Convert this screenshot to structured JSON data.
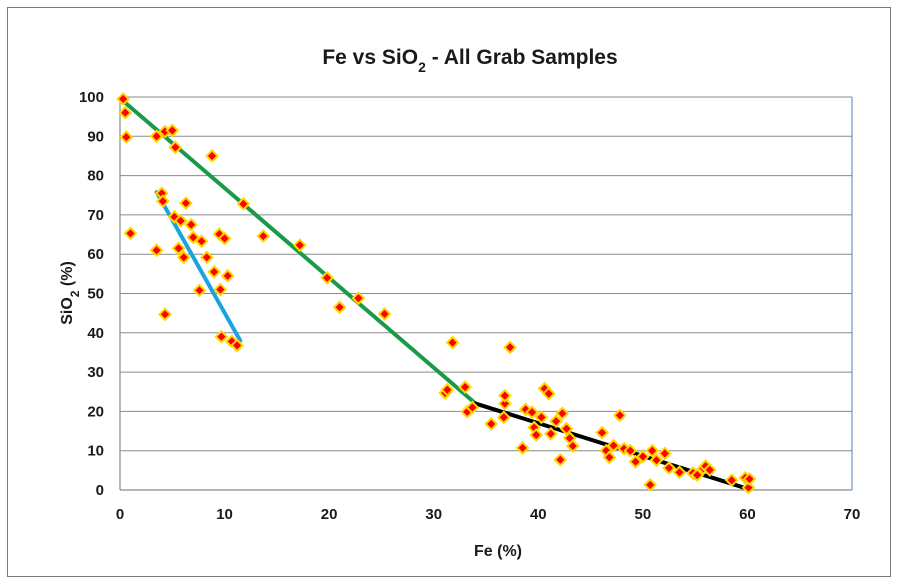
{
  "chart_data": {
    "type": "scatter",
    "title": "Fe vs SiO",
    "title_subscript": "2",
    "title_suffix": " - All Grab Samples",
    "xlabel": "Fe  (%)",
    "ylabel": "SiO",
    "ylabel_subscript": "2",
    "ylabel_suffix": "  (%)",
    "xlim": [
      0,
      70
    ],
    "ylim": [
      0,
      100
    ],
    "x_ticks": [
      "0",
      "10",
      "20",
      "30",
      "40",
      "50",
      "60",
      "70"
    ],
    "y_ticks": [
      "0",
      "10",
      "20",
      "30",
      "40",
      "50",
      "60",
      "70",
      "80",
      "90",
      "100"
    ],
    "grid": "horizontal",
    "legend": "none",
    "plot_background": "#ffffff",
    "grid_color": "#8a8a8a",
    "series": [
      {
        "marker": "diamond",
        "marker_fill": "#ff0000",
        "marker_edge": "#ffd700",
        "points": [
          [
            0.3,
            99.5
          ],
          [
            0.5,
            96
          ],
          [
            0.6,
            89.8
          ],
          [
            1.0,
            65.3
          ],
          [
            3.5,
            90
          ],
          [
            4.3,
            91.2
          ],
          [
            5.0,
            91.5
          ],
          [
            5.3,
            87.2
          ],
          [
            3.5,
            61
          ],
          [
            4.0,
            75.5
          ],
          [
            4.1,
            73.5
          ],
          [
            4.3,
            44.7
          ],
          [
            5.2,
            69.5
          ],
          [
            5.6,
            61.5
          ],
          [
            5.8,
            68.5
          ],
          [
            6.1,
            59.2
          ],
          [
            6.3,
            73
          ],
          [
            6.8,
            67.5
          ],
          [
            7.0,
            64.3
          ],
          [
            7.6,
            50.8
          ],
          [
            7.8,
            63.3
          ],
          [
            8.3,
            59.2
          ],
          [
            8.8,
            85
          ],
          [
            9.0,
            55.5
          ],
          [
            9.5,
            65.1
          ],
          [
            9.6,
            51
          ],
          [
            9.7,
            39
          ],
          [
            10.0,
            64
          ],
          [
            10.3,
            54.5
          ],
          [
            10.7,
            37.8
          ],
          [
            11.2,
            36.8
          ],
          [
            11.8,
            72.8
          ],
          [
            13.7,
            64.6
          ],
          [
            17.2,
            62.3
          ],
          [
            19.8,
            54
          ],
          [
            21.0,
            46.5
          ],
          [
            22.8,
            48.8
          ],
          [
            25.3,
            44.8
          ],
          [
            31.1,
            24.7
          ],
          [
            31.3,
            25.5
          ],
          [
            31.8,
            37.5
          ],
          [
            33.0,
            26.2
          ],
          [
            33.2,
            19.9
          ],
          [
            33.7,
            21
          ],
          [
            35.5,
            16.8
          ],
          [
            36.7,
            18.5
          ],
          [
            36.8,
            22
          ],
          [
            36.8,
            24
          ],
          [
            37.3,
            36.3
          ],
          [
            38.5,
            10.7
          ],
          [
            38.8,
            20.5
          ],
          [
            39.4,
            19.8
          ],
          [
            39.6,
            15.9
          ],
          [
            39.8,
            14
          ],
          [
            40.3,
            18.5
          ],
          [
            40.6,
            25.8
          ],
          [
            41.0,
            24.5
          ],
          [
            41.2,
            14.3
          ],
          [
            41.7,
            17.5
          ],
          [
            42.1,
            7.7
          ],
          [
            42.3,
            19.5
          ],
          [
            42.7,
            15.6
          ],
          [
            43.0,
            13.2
          ],
          [
            43.3,
            11.2
          ],
          [
            46.1,
            14.6
          ],
          [
            46.5,
            10
          ],
          [
            46.8,
            8.3
          ],
          [
            47.2,
            11.3
          ],
          [
            47.8,
            19
          ],
          [
            48.2,
            10.5
          ],
          [
            48.8,
            10
          ],
          [
            49.3,
            7.2
          ],
          [
            50.0,
            8.5
          ],
          [
            50.7,
            1.3
          ],
          [
            50.9,
            10
          ],
          [
            51.3,
            7.6
          ],
          [
            52.1,
            9.3
          ],
          [
            52.5,
            5.6
          ],
          [
            53.5,
            4.5
          ],
          [
            54.8,
            4.3
          ],
          [
            55.2,
            3.8
          ],
          [
            55.8,
            5.5
          ],
          [
            56.0,
            6.1
          ],
          [
            56.4,
            5.1
          ],
          [
            58.5,
            2.5
          ],
          [
            59.8,
            3.1
          ],
          [
            60.1,
            0.6
          ],
          [
            60.2,
            2.8
          ]
        ]
      }
    ],
    "trend_lines": [
      {
        "color": "#1a9a48",
        "points": [
          [
            0.3,
            99.0
          ],
          [
            34,
            22
          ]
        ]
      },
      {
        "color": "#1aa3e0",
        "points": [
          [
            3.5,
            75.8
          ],
          [
            11.5,
            38
          ]
        ]
      },
      {
        "color": "#000000",
        "points": [
          [
            34,
            22
          ],
          [
            59.8,
            0.5
          ]
        ]
      }
    ]
  }
}
